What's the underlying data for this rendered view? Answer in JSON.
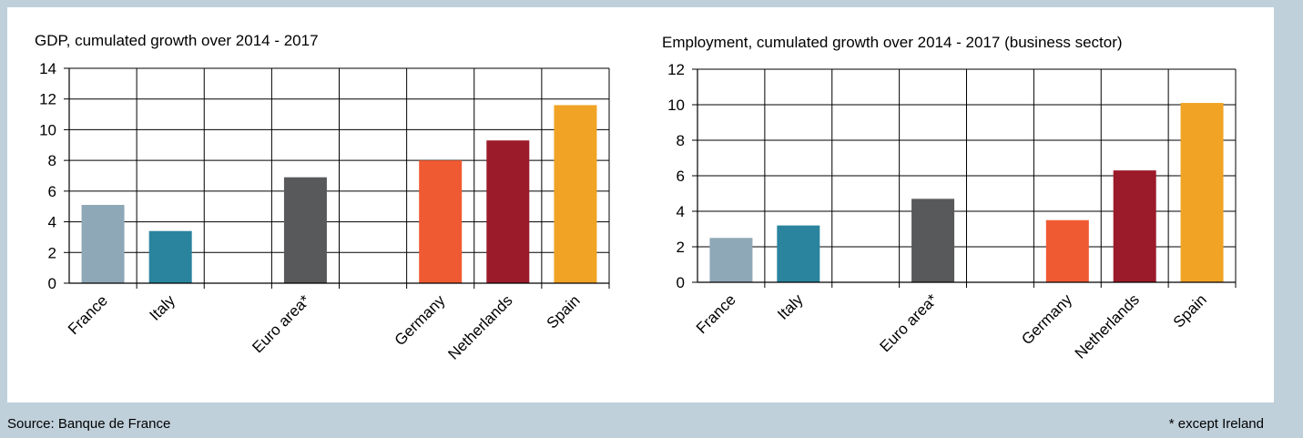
{
  "footer": {
    "source": "Source: Banque de France",
    "note": "* except Ireland"
  },
  "chart_data": [
    {
      "type": "bar",
      "title": "GDP, cumulated growth over 2014 - 2017",
      "xlabel": "",
      "ylabel": "",
      "ylim": [
        0,
        14
      ],
      "yticks": [
        0,
        2,
        4,
        6,
        8,
        10,
        12,
        14
      ],
      "grid": true,
      "categories": [
        "France",
        "Italy",
        "",
        "Euro area*",
        "",
        "Germany",
        "Netherlands",
        "Spain"
      ],
      "values": [
        5.1,
        3.4,
        null,
        6.9,
        null,
        8.0,
        9.3,
        11.6
      ],
      "colors": [
        "#8fa8b7",
        "#2a849e",
        null,
        "#58595b",
        null,
        "#f05a32",
        "#9b1b2a",
        "#f0a324"
      ]
    },
    {
      "type": "bar",
      "title": "Employment, cumulated growth over 2014 - 2017 (business sector)",
      "xlabel": "",
      "ylabel": "",
      "ylim": [
        0,
        12
      ],
      "yticks": [
        0,
        2,
        4,
        6,
        8,
        10,
        12
      ],
      "grid": true,
      "categories": [
        "France",
        "Italy",
        "",
        "Euro area*",
        "",
        "Germany",
        "Netherlands",
        "Spain"
      ],
      "values": [
        2.5,
        3.2,
        null,
        4.7,
        null,
        3.5,
        6.3,
        10.1
      ],
      "colors": [
        "#8fa8b7",
        "#2a849e",
        null,
        "#58595b",
        null,
        "#f05a32",
        "#9b1b2a",
        "#f0a324"
      ]
    }
  ]
}
